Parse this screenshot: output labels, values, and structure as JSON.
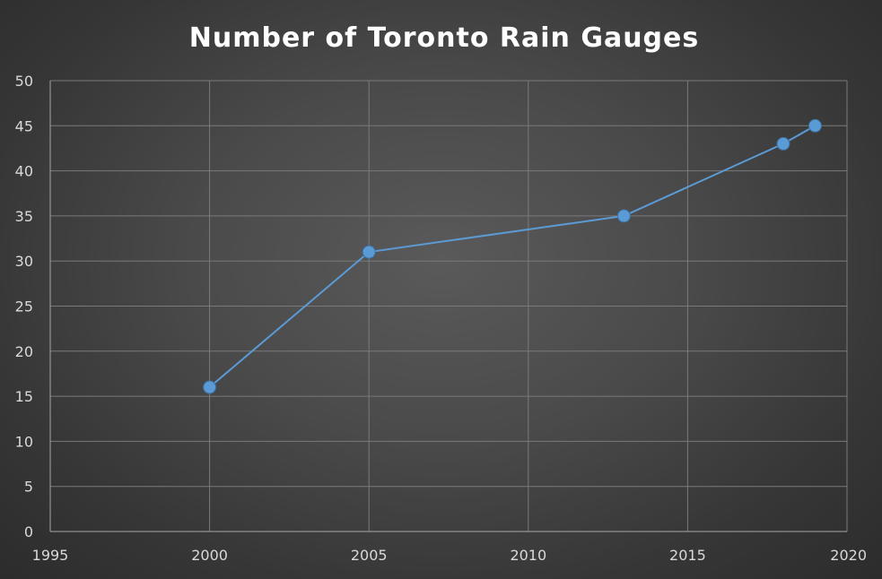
{
  "chart_data": {
    "type": "scatter",
    "title": "Number of Toronto Rain Gauges",
    "xlabel": "",
    "ylabel": "",
    "xlim": [
      1995,
      2020
    ],
    "ylim": [
      0,
      50
    ],
    "x_ticks": [
      1995,
      2000,
      2005,
      2010,
      2015,
      2020
    ],
    "y_ticks": [
      0,
      5,
      10,
      15,
      20,
      25,
      30,
      35,
      40,
      45,
      50
    ],
    "grid": true,
    "legend": "none",
    "lines_connected": true,
    "series": [
      {
        "color": "#5b9bd5",
        "x": [
          2000,
          2005,
          2013,
          2018,
          2019
        ],
        "y": [
          16,
          31,
          35,
          43,
          45
        ]
      }
    ]
  }
}
